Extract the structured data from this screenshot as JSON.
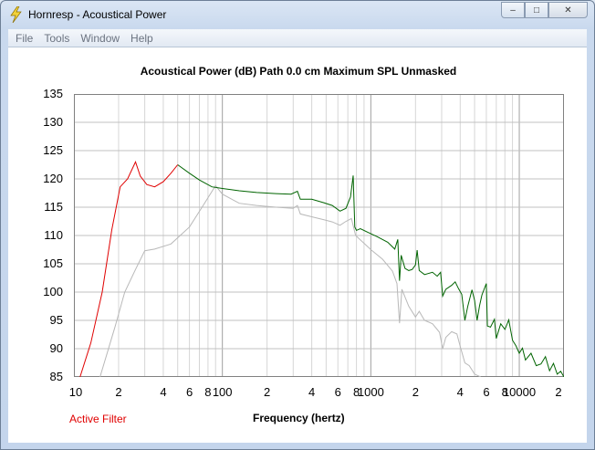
{
  "window": {
    "title": "Hornresp - Acoustical Power"
  },
  "menu": [
    "File",
    "Tools",
    "Window",
    "Help"
  ],
  "plot": {
    "title": "Acoustical Power (dB)   Path 0.0 cm   Maximum SPL   Unmasked",
    "filter_label": "Active Filter",
    "xlabel": "Frequency (hertz)"
  },
  "colors": {
    "red": "#e00000",
    "green": "#006400",
    "grey": "#b8b8b8"
  },
  "chart_data": {
    "type": "line",
    "x_scale": "log",
    "xlim": [
      10,
      20000
    ],
    "ylim": [
      85,
      135
    ],
    "yticks": [
      85,
      90,
      95,
      100,
      105,
      110,
      115,
      120,
      125,
      130,
      135
    ],
    "xtick_labels": [
      {
        "f": 10,
        "label": "10"
      },
      {
        "f": 20,
        "label": "2"
      },
      {
        "f": 40,
        "label": "4"
      },
      {
        "f": 60,
        "label": "6"
      },
      {
        "f": 80,
        "label": "8"
      },
      {
        "f": 100,
        "label": "100"
      },
      {
        "f": 200,
        "label": "2"
      },
      {
        "f": 400,
        "label": "4"
      },
      {
        "f": 600,
        "label": "6"
      },
      {
        "f": 800,
        "label": "8"
      },
      {
        "f": 1000,
        "label": "1000"
      },
      {
        "f": 2000,
        "label": "2"
      },
      {
        "f": 4000,
        "label": "4"
      },
      {
        "f": 6000,
        "label": "6"
      },
      {
        "f": 8000,
        "label": "8"
      },
      {
        "f": 10000,
        "label": "10000"
      },
      {
        "f": 20000,
        "label": "2"
      }
    ],
    "grid": true,
    "series": [
      {
        "color": "red",
        "points": [
          [
            11,
            85
          ],
          [
            13,
            91
          ],
          [
            15.5,
            100
          ],
          [
            18,
            111
          ],
          [
            20.5,
            118.6
          ],
          [
            23,
            120
          ],
          [
            26,
            123
          ],
          [
            28,
            120.5
          ],
          [
            31,
            119
          ],
          [
            35,
            118.6
          ],
          [
            40,
            119.5
          ],
          [
            45,
            121
          ],
          [
            50,
            122.5
          ]
        ]
      },
      {
        "color": "green",
        "points": [
          [
            50,
            122.5
          ],
          [
            60,
            121
          ],
          [
            70,
            119.8
          ],
          [
            85,
            118.6
          ],
          [
            100,
            118.3
          ],
          [
            130,
            117.9
          ],
          [
            170,
            117.6
          ],
          [
            230,
            117.4
          ],
          [
            290,
            117.3
          ],
          [
            320,
            117.8
          ],
          [
            335,
            116.4
          ],
          [
            400,
            116.4
          ],
          [
            480,
            115.8
          ],
          [
            550,
            115.3
          ],
          [
            620,
            114.3
          ],
          [
            680,
            114.8
          ],
          [
            730,
            116.8
          ],
          [
            760,
            120.6
          ],
          [
            780,
            111.5
          ],
          [
            800,
            110.9
          ],
          [
            850,
            111.2
          ],
          [
            1000,
            110.3
          ],
          [
            1100,
            109.8
          ],
          [
            1300,
            108.8
          ],
          [
            1450,
            107.6
          ],
          [
            1520,
            109.3
          ],
          [
            1560,
            102
          ],
          [
            1600,
            106.5
          ],
          [
            1700,
            104.2
          ],
          [
            1800,
            103.8
          ],
          [
            1900,
            104
          ],
          [
            2000,
            104.8
          ],
          [
            2050,
            107.4
          ],
          [
            2120,
            103.8
          ],
          [
            2300,
            103.1
          ],
          [
            2600,
            103.5
          ],
          [
            2800,
            102.8
          ],
          [
            2950,
            103.5
          ],
          [
            3050,
            99.3
          ],
          [
            3200,
            100.5
          ],
          [
            3500,
            101.2
          ],
          [
            3700,
            101.8
          ],
          [
            3900,
            100.6
          ],
          [
            4100,
            99.6
          ],
          [
            4300,
            95
          ],
          [
            4500,
            97.5
          ],
          [
            4800,
            100.4
          ],
          [
            5000,
            98.5
          ],
          [
            5200,
            95
          ],
          [
            5400,
            97.6
          ],
          [
            5600,
            99.5
          ],
          [
            6000,
            101.5
          ],
          [
            6100,
            94
          ],
          [
            6400,
            93.8
          ],
          [
            6800,
            95.2
          ],
          [
            7000,
            91.8
          ],
          [
            7500,
            94.4
          ],
          [
            8000,
            93.4
          ],
          [
            8500,
            95.1
          ],
          [
            9000,
            91.5
          ],
          [
            9500,
            90.5
          ],
          [
            10000,
            89.2
          ],
          [
            10500,
            90.1
          ],
          [
            11000,
            88
          ],
          [
            12000,
            89.2
          ],
          [
            13000,
            87
          ],
          [
            14000,
            87.3
          ],
          [
            15000,
            88.6
          ],
          [
            16000,
            86.1
          ],
          [
            17000,
            87.4
          ],
          [
            18000,
            85.5
          ],
          [
            19000,
            86
          ],
          [
            20000,
            85
          ]
        ]
      },
      {
        "color": "grey",
        "points": [
          [
            15,
            85
          ],
          [
            19,
            94
          ],
          [
            22,
            100
          ],
          [
            26,
            104
          ],
          [
            30,
            107.3
          ],
          [
            35,
            107.6
          ],
          [
            45,
            108.5
          ],
          [
            60,
            111.5
          ],
          [
            75,
            115.5
          ],
          [
            90,
            118.8
          ],
          [
            100,
            117.3
          ],
          [
            130,
            115.7
          ],
          [
            170,
            115.3
          ],
          [
            230,
            115
          ],
          [
            300,
            114.8
          ],
          [
            320,
            115.3
          ],
          [
            335,
            113.8
          ],
          [
            400,
            113.3
          ],
          [
            480,
            112.8
          ],
          [
            550,
            112.4
          ],
          [
            620,
            111.8
          ],
          [
            680,
            112.5
          ],
          [
            740,
            113
          ],
          [
            790,
            110
          ],
          [
            1000,
            107.5
          ],
          [
            1200,
            105.8
          ],
          [
            1400,
            103.7
          ],
          [
            1500,
            101.5
          ],
          [
            1560,
            94.5
          ],
          [
            1620,
            100.5
          ],
          [
            1800,
            97.5
          ],
          [
            2000,
            95.6
          ],
          [
            2120,
            96.6
          ],
          [
            2300,
            95
          ],
          [
            2600,
            94.4
          ],
          [
            2900,
            92.9
          ],
          [
            3050,
            90
          ],
          [
            3200,
            92
          ],
          [
            3500,
            93
          ],
          [
            3800,
            92.6
          ],
          [
            4000,
            90.4
          ],
          [
            4300,
            87.5
          ],
          [
            4600,
            87
          ],
          [
            5000,
            85.5
          ],
          [
            5500,
            85
          ]
        ]
      }
    ]
  }
}
